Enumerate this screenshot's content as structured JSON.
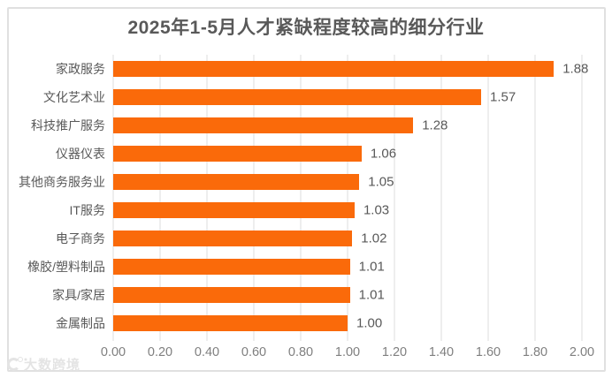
{
  "title": "2025年1-5月人才紧缺程度较高的细分行业",
  "watermark": {
    "text": "大数跨境"
  },
  "colors": {
    "bar": "#FA6A0A",
    "text": "#595959",
    "axis_text": "#7F7F7F",
    "grid": "#DCDCDC",
    "border": "#E0E0E0",
    "watermark": "#E4E4E4"
  },
  "chart_data": {
    "type": "bar",
    "orientation": "horizontal",
    "title": "2025年1-5月人才紧缺程度较高的细分行业",
    "categories": [
      "家政服务",
      "文化艺术业",
      "科技推广服务",
      "仪器仪表",
      "其他商务服务业",
      "IT服务",
      "电子商务",
      "橡胶/塑料制品",
      "家具/家居",
      "金属制品"
    ],
    "values": [
      1.88,
      1.57,
      1.28,
      1.06,
      1.05,
      1.03,
      1.02,
      1.01,
      1.01,
      1.0
    ],
    "value_labels": [
      "1.88",
      "1.57",
      "1.28",
      "1.06",
      "1.05",
      "1.03",
      "1.02",
      "1.01",
      "1.01",
      "1.00"
    ],
    "x_ticks": [
      "0.00",
      "0.20",
      "0.40",
      "0.60",
      "0.80",
      "1.00",
      "1.20",
      "1.40",
      "1.60",
      "1.80",
      "2.00"
    ],
    "xlim": [
      0,
      2.0
    ],
    "xlabel": "",
    "ylabel": "",
    "grid": true,
    "legend": false,
    "data_labels": "outside-end",
    "bar_color_note": "all bars same orange"
  }
}
